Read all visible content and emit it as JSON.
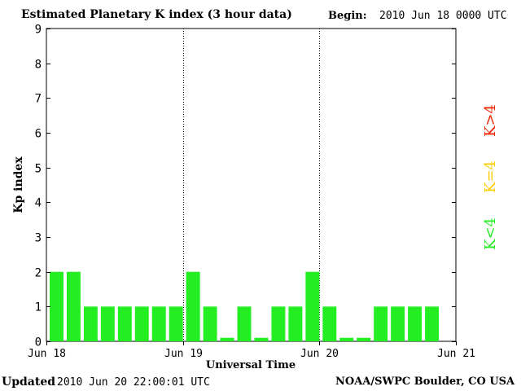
{
  "header": {
    "title": "Estimated Planetary K index (3 hour data)",
    "begin_label": "Begin:",
    "begin_value": "2010 Jun 18 0000 UTC"
  },
  "footer": {
    "updated_label": "Updated",
    "updated_value": "2010 Jun 20 22:00:01 UTC",
    "credit": "NOAA/SWPC Boulder, CO USA"
  },
  "chart_data": {
    "type": "bar",
    "title": "Estimated Planetary K index (3 hour data)",
    "xlabel": "Universal Time",
    "ylabel": "Kp index",
    "ylim": [
      0,
      9
    ],
    "yticks": [
      0,
      1,
      2,
      3,
      4,
      5,
      6,
      7,
      8,
      9
    ],
    "xlim_days": [
      0,
      3
    ],
    "xtick_labels": [
      "Jun 18",
      "Jun 19",
      "Jun 20",
      "Jun 21"
    ],
    "day_separators": [
      "Jun 19",
      "Jun 20"
    ],
    "interval": "3 hour",
    "values": [
      2,
      2,
      1,
      1,
      1,
      1,
      1,
      1,
      2,
      1,
      0.1,
      1,
      0.1,
      1,
      1,
      2,
      1,
      0.1,
      0.1,
      1,
      1,
      1,
      1
    ],
    "legend": [
      {
        "label": "K<4",
        "color": "#22ee22"
      },
      {
        "label": "K=4",
        "color": "#ffcc00"
      },
      {
        "label": "K>4",
        "color": "#ee2200"
      }
    ],
    "legend_position": "right",
    "bar_color": "#22ee22"
  }
}
